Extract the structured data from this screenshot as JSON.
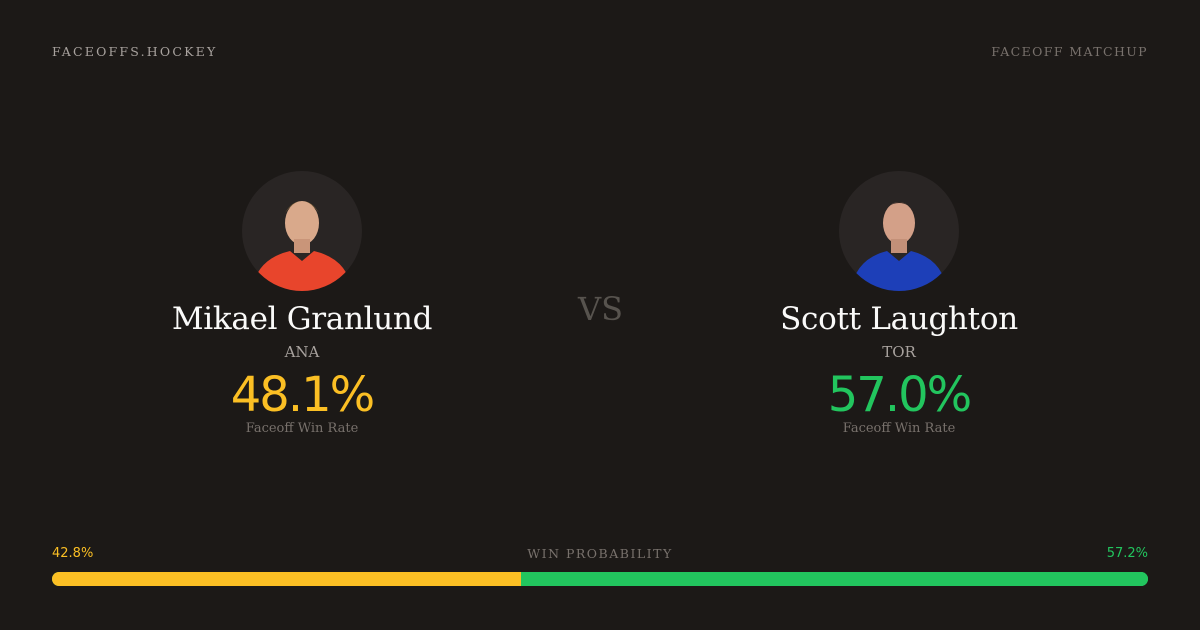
{
  "header": {
    "brand": "FACEOFFS.HOCKEY",
    "tag": "FACEOFF MATCHUP"
  },
  "vs": "VS",
  "players": [
    {
      "name": "Mikael Granlund",
      "team": "ANA",
      "win_rate": "48.1%",
      "win_rate_label": "Faceoff Win Rate",
      "color": "#fbbf24",
      "jersey": "#e8452c"
    },
    {
      "name": "Scott Laughton",
      "team": "TOR",
      "win_rate": "57.0%",
      "win_rate_label": "Faceoff Win Rate",
      "color": "#22c55e",
      "jersey": "#1d3fb8"
    }
  ],
  "win_probability": {
    "label": "WIN PROBABILITY",
    "left": "42.8%",
    "right": "57.2%",
    "left_value": 42.8,
    "right_value": 57.2,
    "left_color": "#fbbf24",
    "right_color": "#22c55e"
  }
}
